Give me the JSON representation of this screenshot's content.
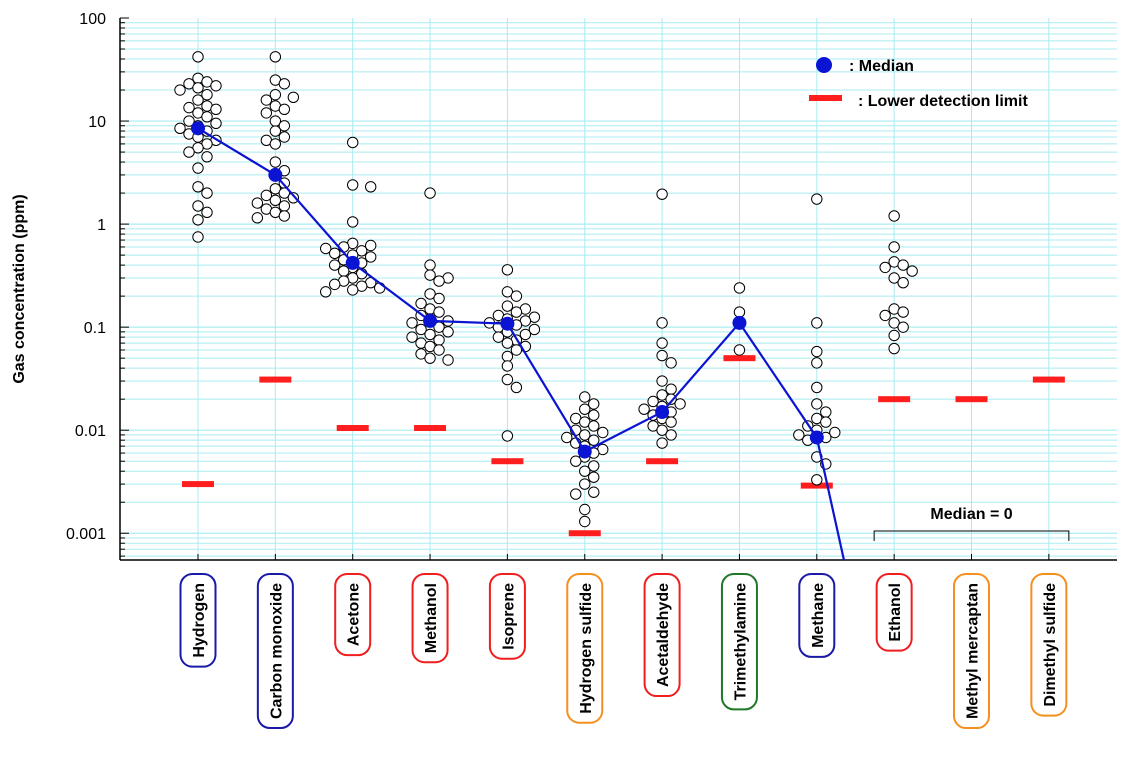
{
  "chart_data": {
    "type": "scatter",
    "title": "",
    "ylabel": "Gas concentration (ppm)",
    "yscale": "log",
    "ylim": [
      0.00055,
      100
    ],
    "ytick_labels": [
      "100",
      "10",
      "1",
      "0.1",
      "0.01",
      "0.001"
    ],
    "yticks": [
      100,
      10,
      1,
      0.1,
      0.01,
      0.001
    ],
    "grid": true,
    "colors": {
      "median": "#0a14d2",
      "median_line": "#0a14d2",
      "detection_limit": "#ff1e1e",
      "grid": "#a8ecf0",
      "box_blue": "#1a1aa8",
      "box_red": "#f01e1e",
      "box_orange": "#f5901e",
      "box_green": "#1e7828"
    },
    "legend": {
      "position": "top-right",
      "median_label": ": Median",
      "lod_label": ": Lower detection limit"
    },
    "annotation": {
      "text": "Median = 0",
      "from_category": 9,
      "to_category": 11
    },
    "categories": [
      {
        "name": "Hydrogen",
        "box": "blue",
        "median": 8.5,
        "lod": 0.003,
        "points": [
          42,
          26,
          24,
          23,
          22,
          21,
          20,
          18,
          16,
          14,
          13.5,
          13,
          12,
          11,
          10,
          9.5,
          9,
          8.5,
          8,
          7.5,
          7,
          6.5,
          6,
          5.5,
          5,
          4.5,
          3.5,
          2.3,
          2,
          1.5,
          1.3,
          1.1,
          0.75
        ]
      },
      {
        "name": "Carbon monoxide",
        "box": "blue",
        "median": 3.0,
        "lod": 0.031,
        "points": [
          42,
          25,
          23,
          18,
          17,
          16,
          14,
          13,
          12,
          10,
          9,
          8,
          7,
          6.5,
          6,
          4,
          3.3,
          3,
          2.5,
          2.2,
          2,
          1.9,
          1.8,
          1.7,
          1.6,
          1.5,
          1.4,
          1.3,
          1.2,
          1.15
        ]
      },
      {
        "name": "Acetone",
        "box": "red",
        "median": 0.42,
        "lod": 0.0105,
        "points": [
          6.2,
          2.4,
          2.3,
          1.05,
          0.65,
          0.62,
          0.6,
          0.58,
          0.55,
          0.52,
          0.5,
          0.48,
          0.45,
          0.42,
          0.4,
          0.38,
          0.35,
          0.33,
          0.3,
          0.28,
          0.27,
          0.26,
          0.25,
          0.24,
          0.23,
          0.22
        ]
      },
      {
        "name": "Methanol",
        "box": "red",
        "median": 0.115,
        "lod": 0.0105,
        "points": [
          2.0,
          0.4,
          0.32,
          0.3,
          0.28,
          0.21,
          0.19,
          0.17,
          0.15,
          0.14,
          0.13,
          0.12,
          0.115,
          0.11,
          0.1,
          0.095,
          0.09,
          0.085,
          0.08,
          0.075,
          0.07,
          0.065,
          0.06,
          0.055,
          0.05,
          0.048
        ]
      },
      {
        "name": "Isoprene",
        "box": "red",
        "median": 0.108,
        "lod": 0.005,
        "points": [
          0.36,
          0.22,
          0.2,
          0.16,
          0.15,
          0.14,
          0.13,
          0.125,
          0.12,
          0.115,
          0.11,
          0.105,
          0.1,
          0.095,
          0.09,
          0.085,
          0.08,
          0.075,
          0.07,
          0.065,
          0.06,
          0.052,
          0.042,
          0.031,
          0.026,
          0.0088
        ]
      },
      {
        "name": "Hydrogen sulfide",
        "box": "orange",
        "median": 0.0062,
        "lod": 0.001,
        "points": [
          0.021,
          0.018,
          0.016,
          0.014,
          0.013,
          0.012,
          0.011,
          0.01,
          0.0095,
          0.009,
          0.0085,
          0.008,
          0.0075,
          0.007,
          0.0065,
          0.006,
          0.0055,
          0.005,
          0.0045,
          0.004,
          0.0035,
          0.003,
          0.0025,
          0.0024,
          0.0017,
          0.0013
        ]
      },
      {
        "name": "Acetaldehyde",
        "box": "red",
        "median": 0.015,
        "lod": 0.005,
        "points": [
          1.95,
          0.11,
          0.07,
          0.053,
          0.045,
          0.03,
          0.025,
          0.022,
          0.02,
          0.019,
          0.018,
          0.017,
          0.016,
          0.015,
          0.014,
          0.013,
          0.012,
          0.011,
          0.01,
          0.009,
          0.0075
        ]
      },
      {
        "name": "Trimethylamine",
        "box": "green",
        "median": 0.11,
        "lod": 0.05,
        "points": [
          0.24,
          0.14,
          0.11,
          0.06
        ]
      },
      {
        "name": "Methane",
        "box": "blue",
        "median": 0.0085,
        "lod": 0.0029,
        "points": [
          1.75,
          0.11,
          0.058,
          0.045,
          0.026,
          0.018,
          0.015,
          0.013,
          0.012,
          0.011,
          0.01,
          0.0095,
          0.009,
          0.0085,
          0.008,
          0.0055,
          0.0047,
          0.0033
        ]
      },
      {
        "name": "Ethanol",
        "box": "red",
        "median": null,
        "lod": 0.02,
        "points": [
          1.2,
          0.6,
          0.43,
          0.4,
          0.38,
          0.35,
          0.3,
          0.27,
          0.15,
          0.14,
          0.13,
          0.11,
          0.1,
          0.083,
          0.062
        ]
      },
      {
        "name": "Methyl mercaptan",
        "box": "orange",
        "median": null,
        "lod": 0.02,
        "points": []
      },
      {
        "name": "Dimethyl sulfide",
        "box": "orange",
        "median": null,
        "lod": 0.031,
        "points": []
      }
    ]
  }
}
